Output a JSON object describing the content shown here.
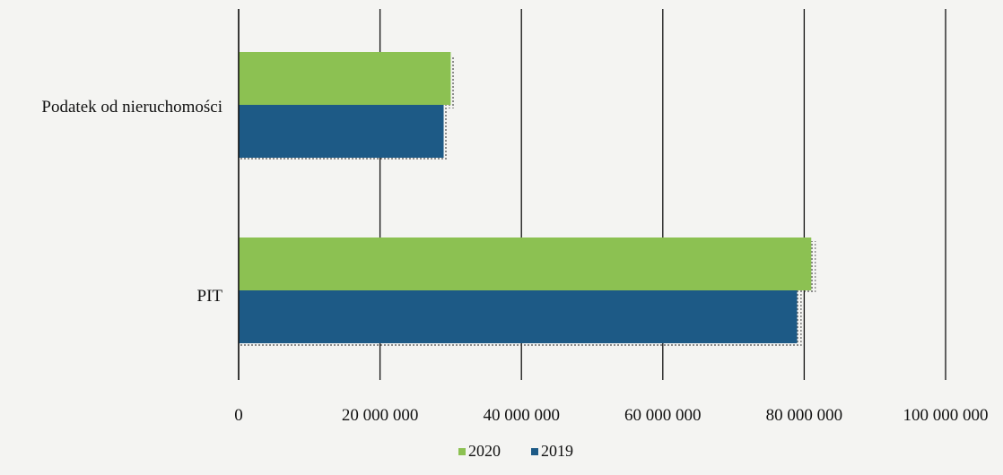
{
  "chart_data": {
    "type": "bar",
    "orientation": "horizontal",
    "categories": [
      "Podatek od nieruchomości",
      "PIT"
    ],
    "series": [
      {
        "name": "2020",
        "color": "#8cc152",
        "values": [
          30000000,
          81000000
        ]
      },
      {
        "name": "2019",
        "color": "#1d5a86",
        "values": [
          29000000,
          79000000
        ]
      }
    ],
    "x_ticks": [
      0,
      20000000,
      40000000,
      60000000,
      80000000,
      100000000
    ],
    "x_tick_labels": [
      "0",
      "20 000 000",
      "40 000 000",
      "60 000 000",
      "80 000 000",
      "100 000 000"
    ],
    "xlim": [
      0,
      100000000
    ],
    "grid": "vertical",
    "legend_position": "bottom"
  }
}
